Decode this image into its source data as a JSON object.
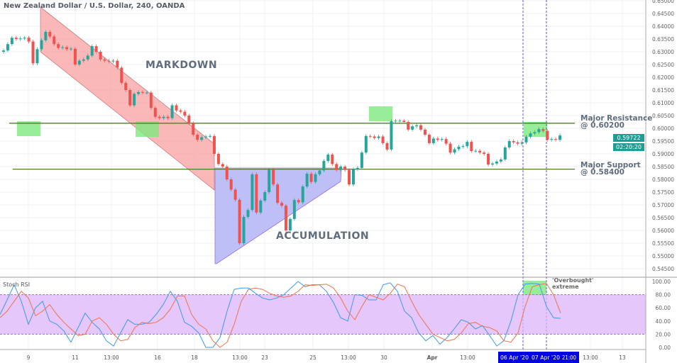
{
  "header": {
    "title": "New Zealand Dollar / U.S. Dollar, 240, OANDA"
  },
  "annotations": {
    "markdown": "MARKDOWN",
    "accumulation": "ACCUMULATION",
    "resistance_label": "Major Resistance",
    "resistance_value": "@ 0.60200",
    "support_label": "Major Support",
    "support_value": "@ 0.58400",
    "overbought_line1": "'Overbought'",
    "overbought_line2": "extreme"
  },
  "price_badge": {
    "price": "0.59722",
    "countdown": "02:20:20"
  },
  "colors": {
    "up": "#26a69a",
    "down": "#ef5350",
    "channel": "#f8a0a0",
    "triangle": "#a9a9f5",
    "highlight": "#7ee87e",
    "level_line": "#4e7d2a",
    "stoch_k": "#3d9be9",
    "stoch_d": "#f2714a",
    "stoch_band": "#dcb4fb",
    "marker": "#0000e0"
  },
  "chart_data": [
    {
      "type": "candlestick",
      "title": "New Zealand Dollar / U.S. Dollar, 240, OANDA",
      "ylim": [
        0.545,
        0.65
      ],
      "y_ticks": [
        "0.65000",
        "0.64500",
        "0.64000",
        "0.63500",
        "0.63000",
        "0.62500",
        "0.62000",
        "0.61500",
        "0.61000",
        "0.60500",
        "0.60000",
        "0.59500",
        "0.59000",
        "0.58500",
        "0.58000",
        "0.57500",
        "0.57000",
        "0.56500",
        "0.56000",
        "0.55500",
        "0.55000",
        "0.54500"
      ],
      "x_ticks": [
        "9",
        "11",
        "13:00",
        "16",
        "18",
        "13:00",
        "23",
        "25",
        "13:00",
        "30",
        "Apr",
        "13:00",
        "06 Apr '20",
        "07 Apr '20",
        "21:00",
        "13:00",
        "13"
      ],
      "highlighted_x_ticks": [
        "06 Apr '20",
        "07 Apr '20",
        "21:00"
      ],
      "levels": [
        {
          "name": "Major Resistance",
          "value": 0.602
        },
        {
          "name": "Major Support",
          "value": 0.584
        }
      ],
      "closes": [
        0.6305,
        0.633,
        0.6355,
        0.635,
        0.6352,
        0.6355,
        0.634,
        0.6255,
        0.631,
        0.6345,
        0.6378,
        0.636,
        0.633,
        0.6315,
        0.6318,
        0.631,
        0.6312,
        0.625,
        0.6265,
        0.627,
        0.6285,
        0.6322,
        0.63,
        0.627,
        0.6265,
        0.6262,
        0.6265,
        0.6238,
        0.6178,
        0.615,
        0.609,
        0.6135,
        0.6142,
        0.614,
        0.614,
        0.608,
        0.6045,
        0.604,
        0.6045,
        0.604,
        0.609,
        0.607,
        0.6065,
        0.605,
        0.602,
        0.5975,
        0.5955,
        0.5965,
        0.5968,
        0.597,
        0.59,
        0.586,
        0.585,
        0.58,
        0.576,
        0.572,
        0.555,
        0.5653,
        0.568,
        0.582,
        0.567,
        0.5717,
        0.575,
        0.5838,
        0.578,
        0.5708,
        0.5697,
        0.56,
        0.5645,
        0.5719,
        0.571,
        0.5772,
        0.5822,
        0.579,
        0.582,
        0.5835,
        0.5872,
        0.5897,
        0.586,
        0.5837,
        0.585,
        0.5837,
        0.578,
        0.584,
        0.5845,
        0.5905,
        0.597,
        0.5968,
        0.5962,
        0.5968,
        0.5942,
        0.5917,
        0.6028,
        0.603,
        0.603,
        0.6025,
        0.5995,
        0.6008,
        0.6012,
        0.5995,
        0.5975,
        0.5942,
        0.596,
        0.5955,
        0.5958,
        0.594,
        0.5905,
        0.5918,
        0.5928,
        0.593,
        0.5947,
        0.5911,
        0.5912,
        0.5905,
        0.59,
        0.5858,
        0.5862,
        0.587,
        0.5878,
        0.5925,
        0.595,
        0.5945,
        0.594,
        0.5945,
        0.5967,
        0.598,
        0.5985,
        0.5997,
        0.599,
        0.5955,
        0.5958,
        0.5955,
        0.5972
      ]
    },
    {
      "type": "line",
      "title": "Stoch RSI",
      "ylim": [
        0,
        100
      ],
      "y_ticks": [
        "100.00",
        "80.00",
        "60.00",
        "40.00",
        "20.00",
        "0.00"
      ],
      "band": [
        20,
        80
      ],
      "series": [
        {
          "values": [
            50,
            72,
            95,
            70,
            35,
            60,
            70,
            40,
            35,
            25,
            8,
            30,
            52,
            38,
            28,
            10,
            2,
            22,
            42,
            35,
            35,
            38,
            50,
            65,
            85,
            70,
            38,
            32,
            22,
            0,
            0,
            15,
            55,
            88,
            90,
            90,
            82,
            75,
            72,
            75,
            80,
            90,
            100,
            92,
            95,
            95,
            85,
            68,
            45,
            40,
            80,
            79,
            72,
            72,
            95,
            98,
            85,
            55,
            45,
            22,
            10,
            18,
            5,
            15,
            28,
            42,
            38,
            28,
            33,
            18,
            2,
            10,
            40,
            80,
            96,
            97,
            96,
            62,
            45,
            44
          ]
        },
        {
          "values": [
            45,
            55,
            70,
            85,
            75,
            48,
            55,
            65,
            50,
            38,
            28,
            18,
            20,
            40,
            45,
            35,
            20,
            10,
            12,
            30,
            38,
            36,
            38,
            45,
            58,
            78,
            78,
            50,
            35,
            28,
            10,
            0,
            8,
            35,
            70,
            88,
            90,
            88,
            82,
            78,
            76,
            78,
            85,
            95,
            94,
            95,
            96,
            90,
            75,
            55,
            42,
            62,
            80,
            76,
            72,
            82,
            96,
            92,
            70,
            50,
            35,
            20,
            15,
            10,
            12,
            22,
            36,
            38,
            32,
            30,
            25,
            10,
            8,
            22,
            62,
            92,
            95,
            97,
            80,
            52
          ]
        }
      ]
    }
  ]
}
